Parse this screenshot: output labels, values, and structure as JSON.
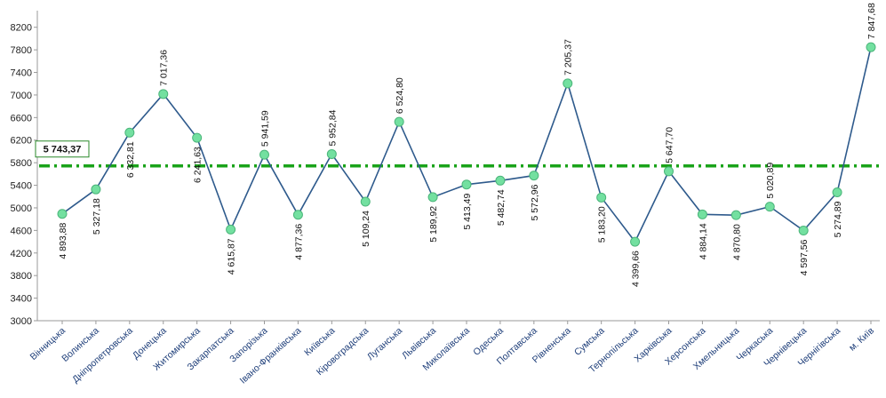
{
  "chart_data": {
    "type": "line",
    "title": "",
    "xlabel": "",
    "ylabel": "",
    "ylim": [
      3000,
      8400
    ],
    "yticks": [
      3000,
      3400,
      3800,
      4200,
      4600,
      5000,
      5400,
      5800,
      6200,
      6600,
      7000,
      7400,
      7800,
      8200
    ],
    "grid": false,
    "legend": "none",
    "categories": [
      "Вінницька",
      "Волинська",
      "Дніпропетровська",
      "Донецька",
      "Житомирська",
      "Закарпатська",
      "Запорізька",
      "Івано-Франківська",
      "Київська",
      "Кіровоградська",
      "Луганська",
      "Львівська",
      "Миколаївська",
      "Одеська",
      "Полтавська",
      "Рівненська",
      "Сумська",
      "Тернопільська",
      "Харківська",
      "Херсонська",
      "Хмельницька",
      "Черкаська",
      "Чернівецька",
      "Чернігівська",
      "м. Київ"
    ],
    "series": [
      {
        "values": [
          4893.88,
          5327.18,
          6332.81,
          7017.36,
          6241.63,
          4615.87,
          5941.59,
          4877.36,
          5952.84,
          5109.24,
          6524.8,
          5189.92,
          5413.49,
          5482.74,
          5572.96,
          7205.37,
          5183.2,
          4399.66,
          5647.7,
          4884.14,
          4870.8,
          5020.89,
          4597.56,
          5274.89,
          7847.68
        ],
        "labels": [
          "4 893,88",
          "5 327,18",
          "6 332,81",
          "7 017,36",
          "6 241,63",
          "4 615,87",
          "5 941,59",
          "4 877,36",
          "5 952,84",
          "5 109,24",
          "6 524,80",
          "5 189,92",
          "5 413,49",
          "5 482,74",
          "5 572,96",
          "7 205,37",
          "5 183,20",
          "4 399,66",
          "5 647,70",
          "4 884,14",
          "4 870,80",
          "5 020,89",
          "4 597,56",
          "5 274,89",
          "7 847,68"
        ],
        "color": "#2e5a8c",
        "marker_color": "#73e0a0"
      }
    ],
    "average": {
      "value": 5743.37,
      "label": "5 743,37",
      "color": "#1aa31a"
    }
  }
}
